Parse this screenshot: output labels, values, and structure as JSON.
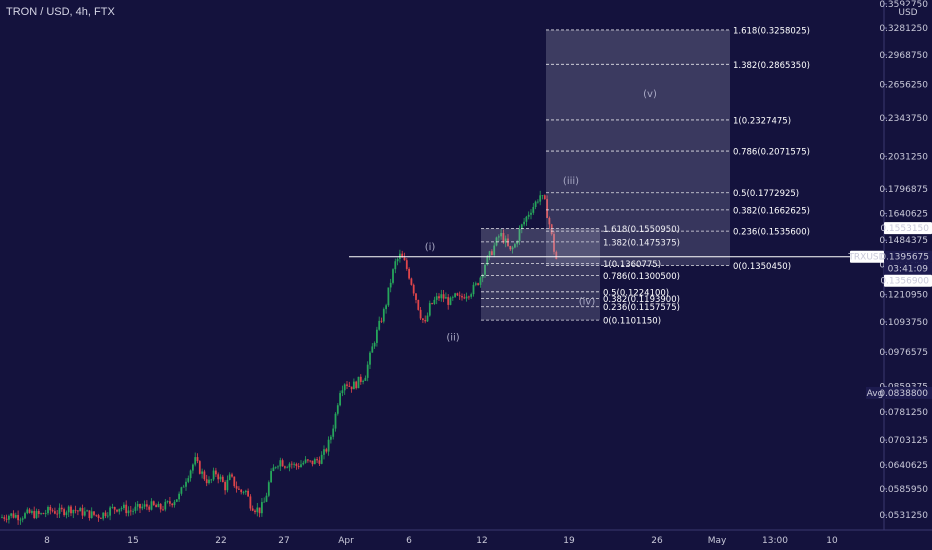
{
  "title": "TRON / USD, 4h, FTX",
  "currency": "USD",
  "colors": {
    "background": "#14123d",
    "up": "#26a65b",
    "down": "#e0454a",
    "fib_fill": "#8e8eb4",
    "price_line": "#ffffff"
  },
  "price_axis": {
    "labels": [
      "0.3592750",
      "0.3281250",
      "0.2968750",
      "0.2656250",
      "0.2343750",
      "0.2031250",
      "0.1796875",
      "0.1640625",
      "0.1484375",
      "0.1356900",
      "0.1210950",
      "0.1093750",
      "0.0976575",
      "0.0859375",
      "0.0781250",
      "0.0703125",
      "0.0640625",
      "0.0585950",
      "0.0531250"
    ]
  },
  "time_axis": {
    "labels": [
      "8",
      "15",
      "22",
      "27",
      "Apr",
      "6",
      "12",
      "19",
      "26",
      "May",
      "13:00",
      "10"
    ]
  },
  "tags": {
    "symbol": "TRXUSD",
    "last_price": "0.1395675",
    "countdown": "03:41:09",
    "level_high": "0.1553150",
    "level_cursor": "0.1356900",
    "avg_label": "Avg",
    "avg_value": "0.0838800"
  },
  "waves": [
    "(i)",
    "(ii)",
    "(iii)",
    "(iv)",
    "(v)"
  ],
  "fib_right": [
    "1.618(0.3258025)",
    "1.382(0.2865350)",
    "1(0.2327475)",
    "0.786(0.2071575)",
    "0.5(0.1772925)",
    "0.382(0.1662625)",
    "0.236(0.1535600)",
    "0(0.1350450)"
  ],
  "fib_left": [
    "1.618(0.1550950)",
    "1.382(0.1475375)",
    "1(0.1360775)",
    "0.786(0.1300500)",
    "0.5(0.1224100)",
    "0.382(0.1193900)",
    "0.236(0.1157575)",
    "0(0.1101150)"
  ],
  "chart_data": {
    "type": "candlestick",
    "title": "TRON / USD, 4h, FTX",
    "ylabel": "USD",
    "ylim": [
      0.051,
      0.359
    ],
    "scale": "log",
    "x_ticks": [
      "8",
      "15",
      "22",
      "27",
      "Apr",
      "6",
      "12",
      "19",
      "26",
      "May",
      "13:00",
      "10"
    ],
    "last_price": 0.1395675,
    "avg_price": 0.08388,
    "price_path": [
      [
        0,
        0.0526
      ],
      [
        10,
        0.0532
      ],
      [
        20,
        0.0529
      ],
      [
        30,
        0.0535
      ],
      [
        40,
        0.0531
      ],
      [
        50,
        0.0541
      ],
      [
        60,
        0.0537
      ],
      [
        70,
        0.0545
      ],
      [
        80,
        0.0538
      ],
      [
        90,
        0.0533
      ],
      [
        100,
        0.053
      ],
      [
        110,
        0.0542
      ],
      [
        120,
        0.0548
      ],
      [
        130,
        0.0539
      ],
      [
        140,
        0.0546
      ],
      [
        150,
        0.0551
      ],
      [
        160,
        0.0544
      ],
      [
        170,
        0.0556
      ],
      [
        180,
        0.0572
      ],
      [
        185,
        0.0605
      ],
      [
        190,
        0.0628
      ],
      [
        195,
        0.0652
      ],
      [
        200,
        0.0628
      ],
      [
        205,
        0.061
      ],
      [
        210,
        0.0598
      ],
      [
        215,
        0.0625
      ],
      [
        220,
        0.061
      ],
      [
        225,
        0.059
      ],
      [
        230,
        0.0612
      ],
      [
        235,
        0.0595
      ],
      [
        240,
        0.0578
      ],
      [
        245,
        0.0585
      ],
      [
        250,
        0.0555
      ],
      [
        255,
        0.0545
      ],
      [
        260,
        0.0541
      ],
      [
        265,
        0.056
      ],
      [
        270,
        0.061
      ],
      [
        275,
        0.064
      ],
      [
        280,
        0.0652
      ],
      [
        285,
        0.0642
      ],
      [
        290,
        0.0646
      ],
      [
        295,
        0.0638
      ],
      [
        300,
        0.0642
      ],
      [
        305,
        0.0648
      ],
      [
        310,
        0.0645
      ],
      [
        315,
        0.065
      ],
      [
        320,
        0.0655
      ],
      [
        325,
        0.0672
      ],
      [
        330,
        0.0703
      ],
      [
        335,
        0.0765
      ],
      [
        340,
        0.085
      ],
      [
        345,
        0.0875
      ],
      [
        350,
        0.086
      ],
      [
        355,
        0.0865
      ],
      [
        360,
        0.088
      ],
      [
        365,
        0.0895
      ],
      [
        370,
        0.096
      ],
      [
        375,
        0.103
      ],
      [
        380,
        0.109
      ],
      [
        385,
        0.115
      ],
      [
        390,
        0.126
      ],
      [
        395,
        0.136
      ],
      [
        400,
        0.14
      ],
      [
        405,
        0.136
      ],
      [
        410,
        0.129
      ],
      [
        415,
        0.121
      ],
      [
        420,
        0.113
      ],
      [
        425,
        0.108
      ],
      [
        430,
        0.116
      ],
      [
        435,
        0.1185
      ],
      [
        440,
        0.1205
      ],
      [
        445,
        0.1195
      ],
      [
        450,
        0.1175
      ],
      [
        455,
        0.12
      ],
      [
        460,
        0.119
      ],
      [
        465,
        0.1215
      ],
      [
        470,
        0.1225
      ],
      [
        475,
        0.1245
      ],
      [
        480,
        0.129
      ],
      [
        485,
        0.136
      ],
      [
        490,
        0.1405
      ],
      [
        495,
        0.146
      ],
      [
        500,
        0.152
      ],
      [
        505,
        0.148
      ],
      [
        510,
        0.142
      ],
      [
        515,
        0.146
      ],
      [
        520,
        0.1545
      ],
      [
        525,
        0.16
      ],
      [
        530,
        0.166
      ],
      [
        535,
        0.17
      ],
      [
        540,
        0.176
      ],
      [
        545,
        0.17
      ],
      [
        550,
        0.156
      ],
      [
        555,
        0.14
      ],
      [
        557,
        0.1375
      ]
    ],
    "wave_labels": [
      {
        "label": "(i)",
        "x": 400,
        "price": 0.14
      },
      {
        "label": "(ii)",
        "x": 423,
        "price": 0.1075
      },
      {
        "label": "(iii)",
        "x": 541,
        "price": 0.179
      },
      {
        "label": "(iv)",
        "x": 557,
        "price": 0.123
      },
      {
        "label": "(v)",
        "x": 620,
        "price": 0.248
      }
    ],
    "fib_extension_right": [
      {
        "ratio": 1.618,
        "price": 0.3258025
      },
      {
        "ratio": 1.382,
        "price": 0.286535
      },
      {
        "ratio": 1,
        "price": 0.2327475
      },
      {
        "ratio": 0.786,
        "price": 0.2071575
      },
      {
        "ratio": 0.5,
        "price": 0.1772925
      },
      {
        "ratio": 0.382,
        "price": 0.1662625
      },
      {
        "ratio": 0.236,
        "price": 0.15356
      },
      {
        "ratio": 0,
        "price": 0.135045
      }
    ],
    "fib_extension_left": [
      {
        "ratio": 1.618,
        "price": 0.155095
      },
      {
        "ratio": 1.382,
        "price": 0.1475375
      },
      {
        "ratio": 1,
        "price": 0.1360775
      },
      {
        "ratio": 0.786,
        "price": 0.13005
      },
      {
        "ratio": 0.5,
        "price": 0.12241
      },
      {
        "ratio": 0.382,
        "price": 0.11939
      },
      {
        "ratio": 0.236,
        "price": 0.1157575
      },
      {
        "ratio": 0,
        "price": 0.110115
      }
    ]
  }
}
